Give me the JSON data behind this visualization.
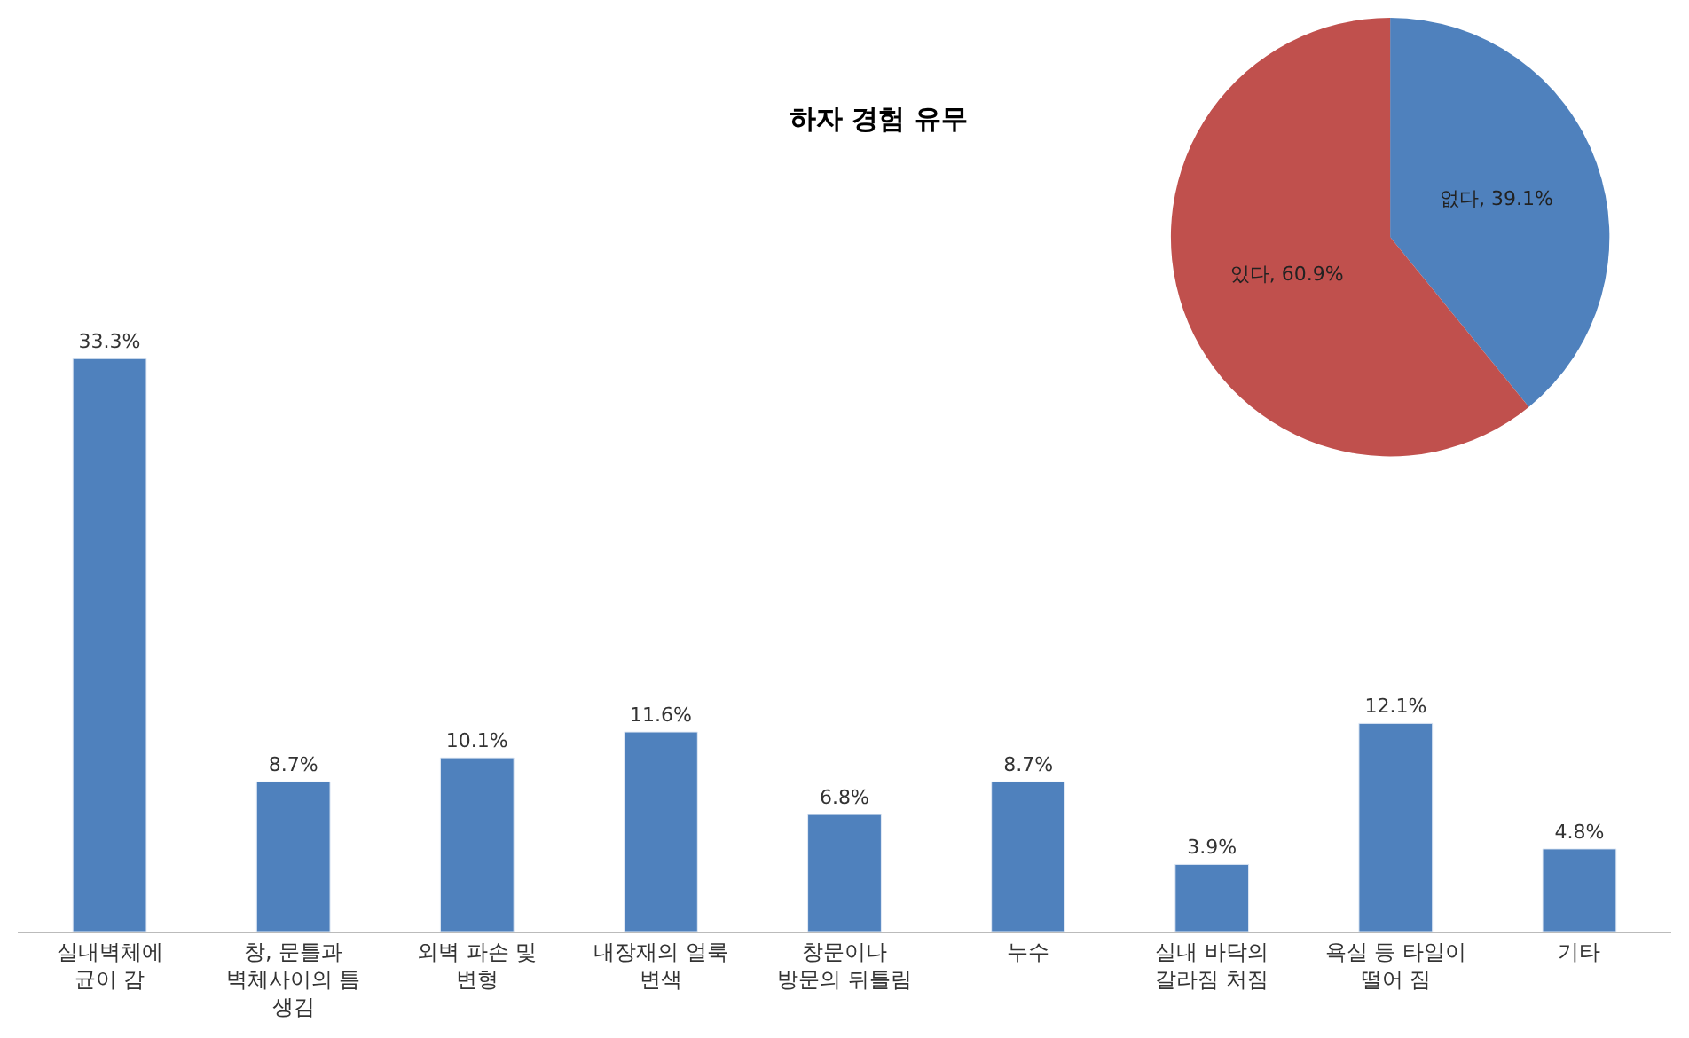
{
  "chart_data": [
    {
      "type": "bar",
      "categories": [
        "실내벽체에\n균이 감",
        "창, 문틀과\n벽체사이의 틈\n생김",
        "외벽 파손 및\n변형",
        "내장재의 얼룩\n변색",
        "창문이나\n방문의 뒤틀림",
        "누수",
        "실내 바닥의\n갈라짐 처짐",
        "욕실 등 타일이\n떨어 짐",
        "기타"
      ],
      "values": [
        33.3,
        8.7,
        10.1,
        11.6,
        6.8,
        8.7,
        3.9,
        12.1,
        4.8
      ],
      "value_labels": [
        "33.3%",
        "8.7%",
        "10.1%",
        "11.6%",
        "6.8%",
        "8.7%",
        "3.9%",
        "12.1%",
        "4.8%"
      ],
      "color": "#4f81bd"
    },
    {
      "type": "pie",
      "title": "하자 경험 유무",
      "categories": [
        "없다",
        "있다"
      ],
      "values": [
        39.1,
        60.9
      ],
      "value_labels": [
        "39.1%",
        "60.9%"
      ],
      "colors": [
        "#4f81bd",
        "#c0504d"
      ]
    }
  ]
}
